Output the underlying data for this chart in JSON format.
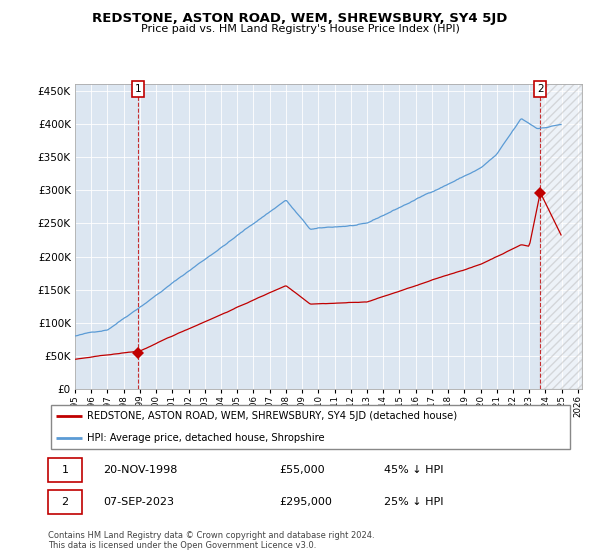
{
  "title": "REDSTONE, ASTON ROAD, WEM, SHREWSBURY, SY4 5JD",
  "subtitle": "Price paid vs. HM Land Registry's House Price Index (HPI)",
  "sale1_date": "20-NOV-1998",
  "sale1_price": 55000,
  "sale1_label": "45% ↓ HPI",
  "sale2_date": "07-SEP-2023",
  "sale2_price": 295000,
  "sale2_label": "25% ↓ HPI",
  "legend_line1": "REDSTONE, ASTON ROAD, WEM, SHREWSBURY, SY4 5JD (detached house)",
  "legend_line2": "HPI: Average price, detached house, Shropshire",
  "footer": "Contains HM Land Registry data © Crown copyright and database right 2024.\nThis data is licensed under the Open Government Licence v3.0.",
  "hpi_color": "#5B9BD5",
  "price_color": "#C00000",
  "marker_color": "#C00000",
  "background_color": "#ffffff",
  "plot_bg_color": "#DCE6F1",
  "grid_color": "#ffffff",
  "ylim": [
    0,
    460000
  ],
  "yticks": [
    0,
    50000,
    100000,
    150000,
    200000,
    250000,
    300000,
    350000,
    400000,
    450000
  ],
  "sale1_x": 1998.875,
  "sale2_x": 2023.667,
  "xlim_start": 1995.25,
  "xlim_end": 2026.25
}
